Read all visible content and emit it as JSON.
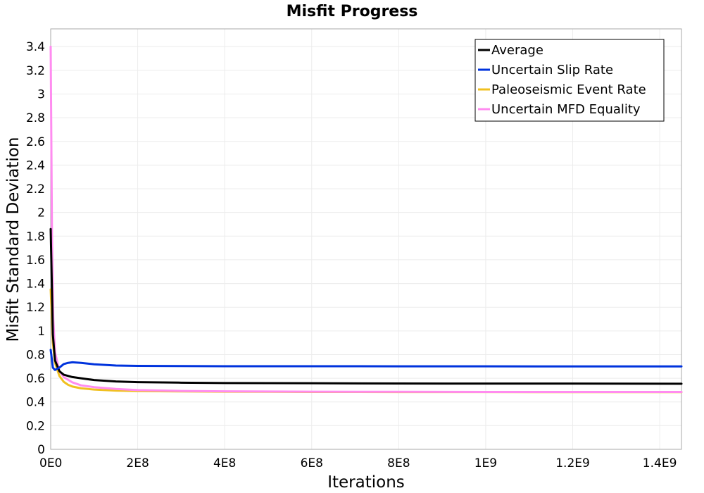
{
  "chart_data": {
    "type": "line",
    "title": "Misfit Progress",
    "xlabel": "Iterations",
    "ylabel": "Misfit Standard Deviation",
    "xlim": [
      0,
      1450000000
    ],
    "ylim": [
      0,
      3.55
    ],
    "grid": true,
    "legend_position": "top-right",
    "x_ticks": [
      {
        "value": 0,
        "label": "0E0"
      },
      {
        "value": 200000000,
        "label": "2E8"
      },
      {
        "value": 400000000,
        "label": "4E8"
      },
      {
        "value": 600000000,
        "label": "6E8"
      },
      {
        "value": 800000000,
        "label": "8E8"
      },
      {
        "value": 1000000000,
        "label": "1E9"
      },
      {
        "value": 1200000000,
        "label": "1.2E9"
      },
      {
        "value": 1400000000,
        "label": "1.4E9"
      }
    ],
    "y_ticks": [
      {
        "value": 0,
        "label": "0"
      },
      {
        "value": 0.2,
        "label": "0.2"
      },
      {
        "value": 0.4,
        "label": "0.4"
      },
      {
        "value": 0.6,
        "label": "0.6"
      },
      {
        "value": 0.8,
        "label": "0.8"
      },
      {
        "value": 1,
        "label": "1"
      },
      {
        "value": 1.2,
        "label": "1.2"
      },
      {
        "value": 1.4,
        "label": "1.4"
      },
      {
        "value": 1.6,
        "label": "1.6"
      },
      {
        "value": 1.8,
        "label": "1.8"
      },
      {
        "value": 2,
        "label": "2"
      },
      {
        "value": 2.2,
        "label": "2.2"
      },
      {
        "value": 2.4,
        "label": "2.4"
      },
      {
        "value": 2.6,
        "label": "2.6"
      },
      {
        "value": 2.8,
        "label": "2.8"
      },
      {
        "value": 3,
        "label": "3"
      },
      {
        "value": 3.2,
        "label": "3.2"
      },
      {
        "value": 3.4,
        "label": "3.4"
      }
    ],
    "series": [
      {
        "name": "Average",
        "color": "#000000",
        "x": [
          0,
          5000000,
          10000000,
          20000000,
          30000000,
          50000000,
          70000000,
          100000000,
          150000000,
          200000000,
          300000000,
          400000000,
          600000000,
          800000000,
          1000000000,
          1200000000,
          1450000000
        ],
        "y": [
          1.86,
          0.97,
          0.75,
          0.66,
          0.63,
          0.61,
          0.6,
          0.585,
          0.573,
          0.567,
          0.563,
          0.56,
          0.558,
          0.556,
          0.555,
          0.555,
          0.554
        ]
      },
      {
        "name": "Uncertain Slip Rate",
        "color": "#0033dd",
        "x": [
          0,
          5000000,
          10000000,
          20000000,
          30000000,
          40000000,
          50000000,
          70000000,
          100000000,
          150000000,
          200000000,
          300000000,
          400000000,
          600000000,
          800000000,
          1000000000,
          1200000000,
          1450000000
        ],
        "y": [
          0.84,
          0.69,
          0.67,
          0.69,
          0.72,
          0.73,
          0.735,
          0.73,
          0.718,
          0.708,
          0.705,
          0.703,
          0.702,
          0.702,
          0.701,
          0.701,
          0.7,
          0.7
        ]
      },
      {
        "name": "Paleoseismic Event Rate",
        "color": "#f0c020",
        "x": [
          0,
          5000000,
          10000000,
          20000000,
          30000000,
          40000000,
          50000000,
          70000000,
          100000000,
          150000000,
          200000000,
          300000000,
          400000000,
          600000000,
          800000000,
          1000000000,
          1200000000,
          1450000000
        ],
        "y": [
          1.35,
          0.9,
          0.73,
          0.62,
          0.57,
          0.545,
          0.53,
          0.515,
          0.505,
          0.496,
          0.492,
          0.489,
          0.487,
          0.485,
          0.484,
          0.484,
          0.483,
          0.483
        ]
      },
      {
        "name": "Uncertain MFD Equality",
        "color": "#ff8cf0",
        "x": [
          0,
          3000000,
          6000000,
          10000000,
          20000000,
          30000000,
          50000000,
          70000000,
          100000000,
          150000000,
          200000000,
          300000000,
          400000000,
          600000000,
          800000000,
          1000000000,
          1200000000,
          1450000000
        ],
        "y": [
          3.4,
          1.8,
          1.1,
          0.82,
          0.66,
          0.61,
          0.565,
          0.54,
          0.525,
          0.51,
          0.5,
          0.493,
          0.49,
          0.487,
          0.486,
          0.485,
          0.485,
          0.485
        ]
      }
    ]
  }
}
